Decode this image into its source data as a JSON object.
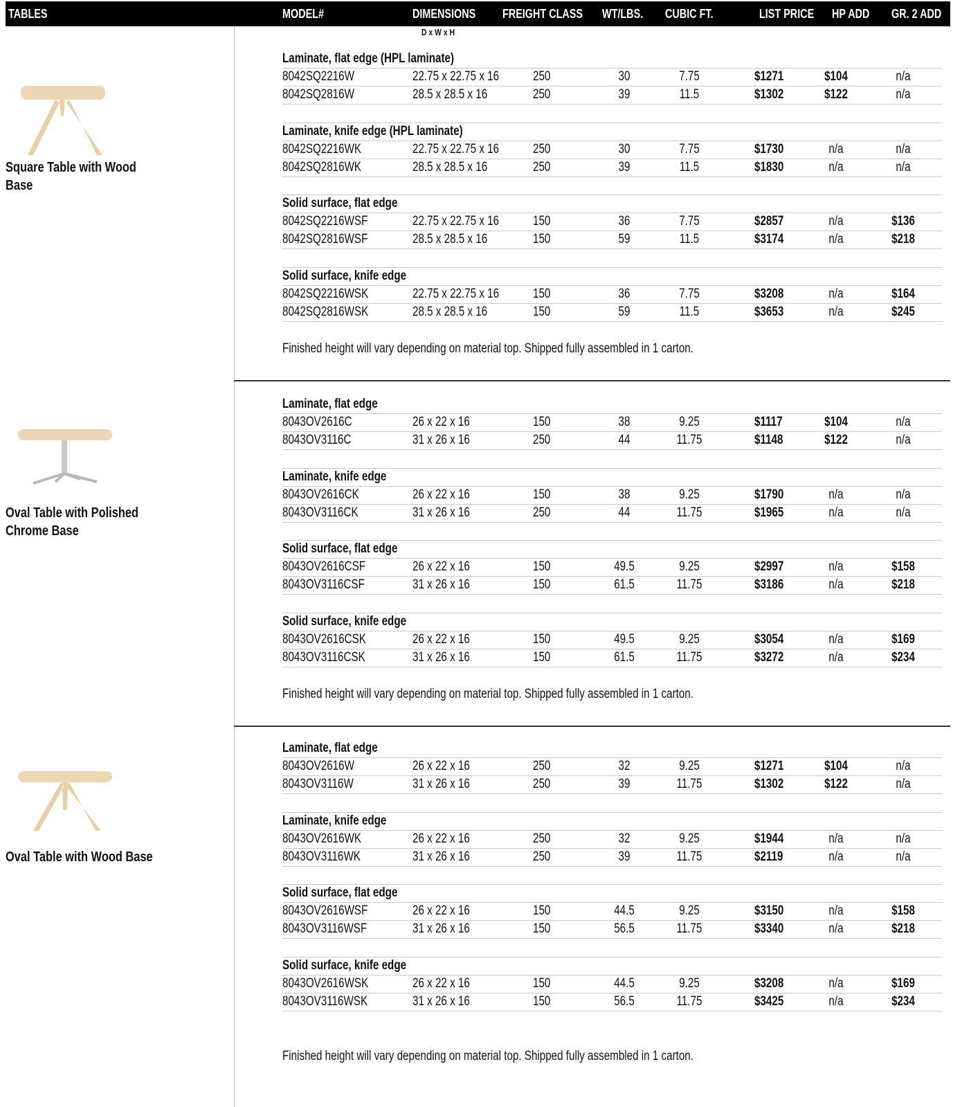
{
  "header": {
    "columns": [
      "TABLES",
      "MODEL#",
      "DIMENSIONS",
      "FREIGHT CLASS",
      "WT/LBS.",
      "CUBIC FT.",
      "LIST PRICE",
      "HP ADD",
      "GR. 2 ADD"
    ],
    "dimensions_note": "D x W x H"
  },
  "products": [
    {
      "name": "Square Table with Wood Base",
      "groups": [
        {
          "title": "Laminate, flat edge (HPL laminate)",
          "rows": [
            [
              "8042SQ2216W",
              "22.75 x 22.75 x 16",
              "250",
              "30",
              "7.75",
              "$1271",
              "$104",
              "n/a"
            ],
            [
              "8042SQ2816W",
              "28.5 x 28.5 x 16",
              "250",
              "39",
              "11.5",
              "$1302",
              "$122",
              "n/a"
            ]
          ]
        },
        {
          "title": "Laminate, knife edge (HPL laminate)",
          "rows": [
            [
              "8042SQ2216WK",
              "22.75 x 22.75 x 16",
              "250",
              "30",
              "7.75",
              "$1730",
              "n/a",
              "n/a"
            ],
            [
              "8042SQ2816WK",
              "28.5 x 28.5 x 16",
              "250",
              "39",
              "11.5",
              "$1830",
              "n/a",
              "n/a"
            ]
          ]
        },
        {
          "title": "Solid surface, flat edge",
          "rows": [
            [
              "8042SQ2216WSF",
              "22.75 x 22.75 x 16",
              "150",
              "36",
              "7.75",
              "$2857",
              "n/a",
              "$136"
            ],
            [
              "8042SQ2816WSF",
              "28.5 x 28.5 x 16",
              "150",
              "59",
              "11.5",
              "$3174",
              "n/a",
              "$218"
            ]
          ]
        },
        {
          "title": "Solid surface, knife edge",
          "rows": [
            [
              "8042SQ2216WSK",
              "22.75 x 22.75 x 16",
              "150",
              "36",
              "7.75",
              "$3208",
              "n/a",
              "$164"
            ],
            [
              "8042SQ2816WSK",
              "28.5 x 28.5 x 16",
              "150",
              "59",
              "11.5",
              "$3653",
              "n/a",
              "$245"
            ]
          ]
        }
      ],
      "note": "Finished height will vary depending on material top. Shipped fully assembled in 1 carton."
    },
    {
      "name": "Oval Table with Polished Chrome Base",
      "groups": [
        {
          "title": "Laminate, flat edge",
          "rows": [
            [
              "8043OV2616C",
              "26 x 22 x 16",
              "150",
              "38",
              "9.25",
              "$1117",
              "$104",
              "n/a"
            ],
            [
              "8043OV3116C",
              "31 x 26 x 16",
              "250",
              "44",
              "11.75",
              "$1148",
              "$122",
              "n/a"
            ]
          ]
        },
        {
          "title": "Laminate, knife edge",
          "rows": [
            [
              "8043OV2616CK",
              "26 x 22 x 16",
              "150",
              "38",
              "9.25",
              "$1790",
              "n/a",
              "n/a"
            ],
            [
              "8043OV3116CK",
              "31 x 26 x 16",
              "250",
              "44",
              "11.75",
              "$1965",
              "n/a",
              "n/a"
            ]
          ]
        },
        {
          "title": "Solid surface, flat edge",
          "rows": [
            [
              "8043OV2616CSF",
              "26 x 22 x 16",
              "150",
              "49.5",
              "9.25",
              "$2997",
              "n/a",
              "$158"
            ],
            [
              "8043OV3116CSF",
              "31 x 26 x 16",
              "150",
              "61.5",
              "11.75",
              "$3186",
              "n/a",
              "$218"
            ]
          ]
        },
        {
          "title": "Solid surface, knife edge",
          "rows": [
            [
              "8043OV2616CSK",
              "26 x 22 x 16",
              "150",
              "49.5",
              "9.25",
              "$3054",
              "n/a",
              "$169"
            ],
            [
              "8043OV3116CSK",
              "31 x 26 x 16",
              "150",
              "61.5",
              "11.75",
              "$3272",
              "n/a",
              "$234"
            ]
          ]
        }
      ],
      "note": "Finished height will vary depending on material top. Shipped fully assembled in 1 carton."
    },
    {
      "name": "Oval Table with Wood Base",
      "groups": [
        {
          "title": "Laminate, flat edge",
          "rows": [
            [
              "8043OV2616W",
              "26 x 22 x 16",
              "250",
              "32",
              "9.25",
              "$1271",
              "$104",
              "n/a"
            ],
            [
              "8043OV3116W",
              "31 x 26 x 16",
              "250",
              "39",
              "11.75",
              "$1302",
              "$122",
              "n/a"
            ]
          ]
        },
        {
          "title": "Laminate, knife edge",
          "rows": [
            [
              "8043OV2616WK",
              "26 x 22 x 16",
              "250",
              "32",
              "9.25",
              "$1944",
              "n/a",
              "n/a"
            ],
            [
              "8043OV3116WK",
              "31 x 26 x 16",
              "250",
              "39",
              "11.75",
              "$2119",
              "n/a",
              "n/a"
            ]
          ]
        },
        {
          "title": "Solid surface, flat edge",
          "rows": [
            [
              "8043OV2616WSF",
              "26 x 22 x 16",
              "150",
              "44.5",
              "9.25",
              "$3150",
              "n/a",
              "$158"
            ],
            [
              "8043OV3116WSF",
              "31 x 26 x 16",
              "150",
              "56.5",
              "11.75",
              "$3340",
              "n/a",
              "$218"
            ]
          ]
        },
        {
          "title": "Solid surface, knife edge",
          "rows": [
            [
              "8043OV2616WSK",
              "26 x 22 x 16",
              "150",
              "44.5",
              "9.25",
              "$3208",
              "n/a",
              "$169"
            ],
            [
              "8043OV3116WSK",
              "31 x 26 x 16",
              "150",
              "56.5",
              "11.75",
              "$3425",
              "n/a",
              "$234"
            ]
          ]
        }
      ],
      "note": "Finished height will vary depending on material top. Shipped fully assembled in 1 carton."
    }
  ]
}
